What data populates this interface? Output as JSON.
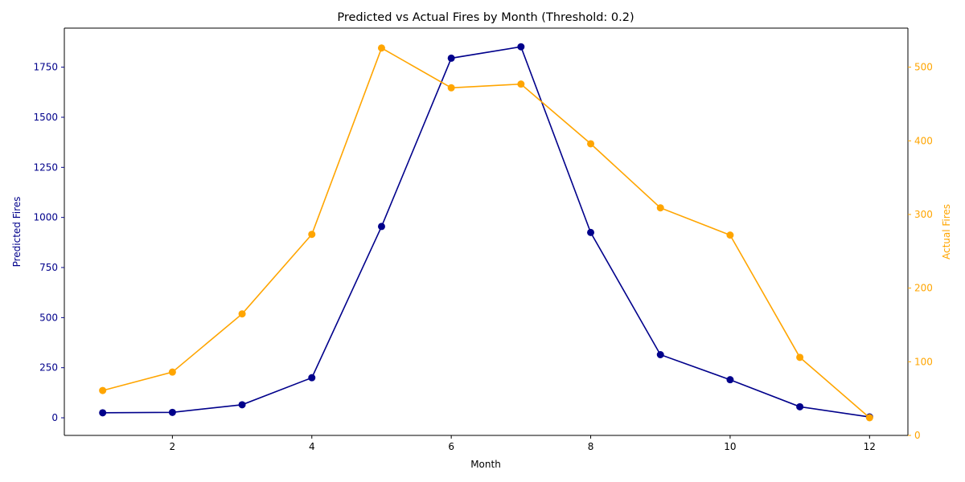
{
  "chart_data": {
    "type": "line",
    "title": "Predicted vs Actual Fires by Month (Threshold: 0.2)",
    "xlabel": "Month",
    "x": [
      1,
      2,
      3,
      4,
      5,
      6,
      7,
      8,
      9,
      10,
      11,
      12
    ],
    "xlim": [
      0.45,
      12.55
    ],
    "xticks": [
      2,
      4,
      6,
      8,
      10,
      12
    ],
    "left_axis": {
      "label": "Predicted Fires",
      "ylim": [
        -88,
        1945
      ],
      "ticks": [
        0,
        250,
        500,
        750,
        1000,
        1250,
        1500,
        1750
      ],
      "color": "#00008b"
    },
    "right_axis": {
      "label": "Actual Fires",
      "ylim": [
        0,
        553
      ],
      "ticks": [
        0,
        100,
        200,
        300,
        400,
        500
      ],
      "color": "#ffa500"
    },
    "series": [
      {
        "axis": "left",
        "color": "#00008b",
        "marker": "circle",
        "values": [
          25,
          27,
          65,
          200,
          955,
          1795,
          1852,
          925,
          315,
          190,
          55,
          4
        ]
      },
      {
        "axis": "right",
        "color": "#ffa500",
        "marker": "circle",
        "values": [
          61,
          86,
          165,
          273,
          526,
          472,
          477,
          396,
          309,
          272,
          106,
          24
        ]
      }
    ],
    "grid": false
  }
}
